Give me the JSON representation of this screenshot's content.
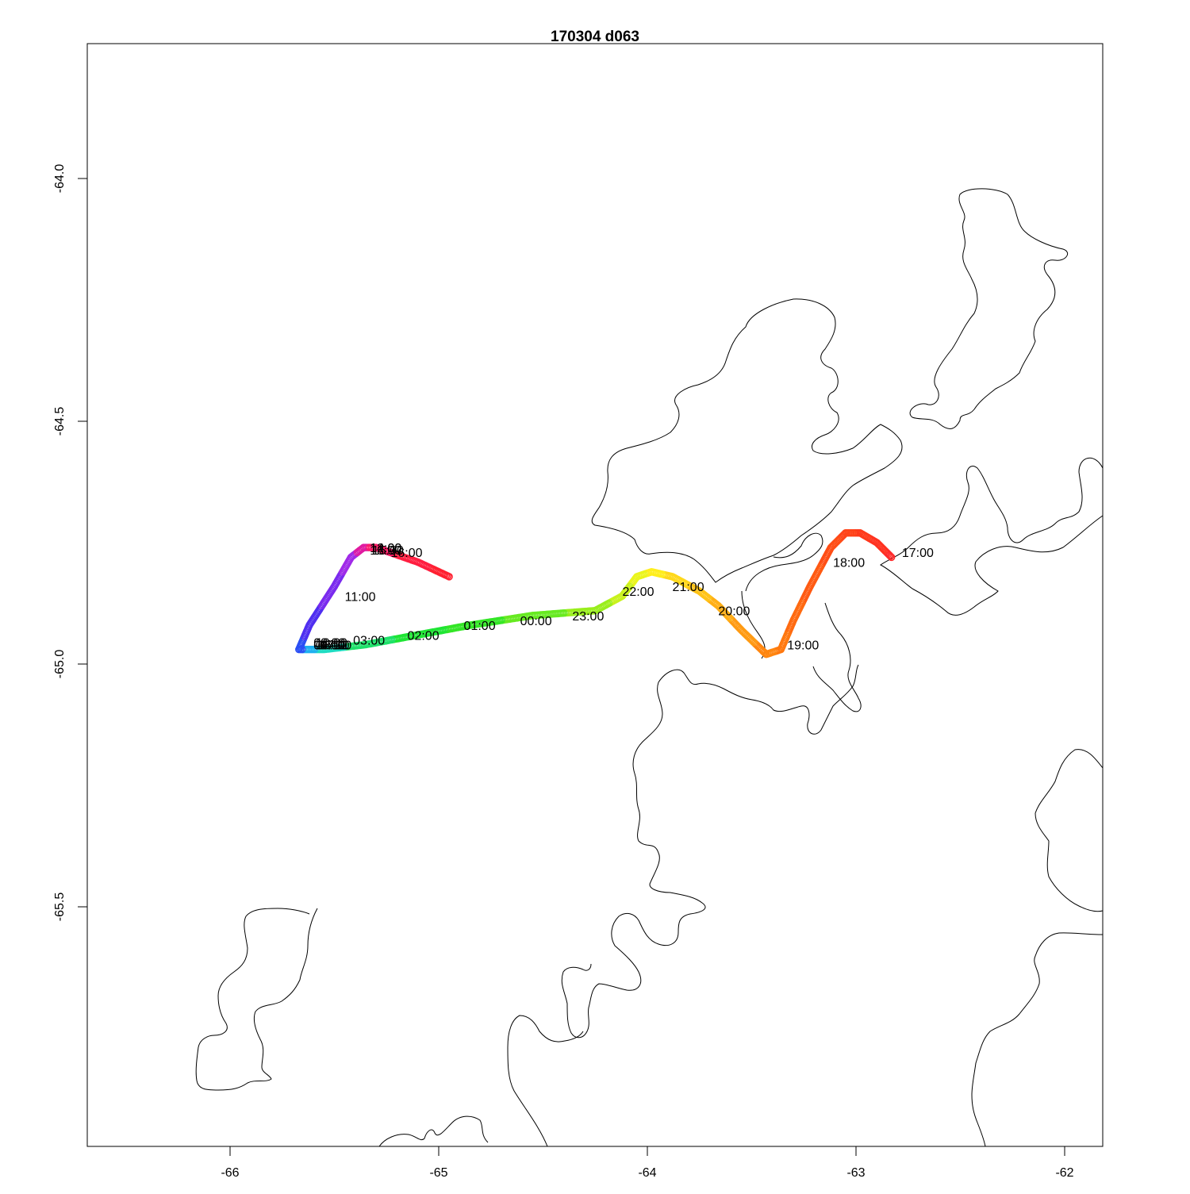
{
  "title": "170304   d063",
  "axes": {
    "x_ticks": [
      -66,
      -65,
      -64,
      -63,
      -62
    ],
    "x_tick_labels": [
      "-66",
      "-65",
      "-64",
      "-63",
      "-62"
    ],
    "y_ticks": [
      -64.0,
      -64.5,
      -65.0,
      -65.5
    ],
    "y_tick_labels": [
      "-64.0",
      "-64.5",
      "-65.0",
      "-65.5"
    ],
    "xlim": [
      -66.68,
      -61.82
    ],
    "ylim": [
      -66.0,
      -63.72
    ]
  },
  "colors": {
    "coastline": "#000000",
    "frame": "#000000",
    "label": "#000000"
  },
  "chart_data": {
    "type": "line",
    "description_of_encoding": "track colored by time",
    "track": [
      {
        "lon": -62.83,
        "lat": -64.78,
        "color": "#ff2a2a"
      },
      {
        "lon": -62.9,
        "lat": -64.75,
        "color": "#ff3220"
      },
      {
        "lon": -62.98,
        "lat": -64.73,
        "color": "#ff3a1a"
      },
      {
        "lon": -63.05,
        "lat": -64.73,
        "color": "#ff4318"
      },
      {
        "lon": -63.12,
        "lat": -64.76,
        "color": "#ff4d15"
      },
      {
        "lon": -63.22,
        "lat": -64.84,
        "color": "#ff5a12"
      },
      {
        "lon": -63.3,
        "lat": -64.91,
        "color": "#ff6a10"
      },
      {
        "lon": -63.36,
        "lat": -64.97,
        "color": "#ff780e"
      },
      {
        "lon": -63.43,
        "lat": -64.98,
        "color": "#ff860f"
      },
      {
        "lon": -63.55,
        "lat": -64.93,
        "color": "#ff9a12"
      },
      {
        "lon": -63.66,
        "lat": -64.88,
        "color": "#ffae14"
      },
      {
        "lon": -63.75,
        "lat": -64.85,
        "color": "#ffc317"
      },
      {
        "lon": -63.88,
        "lat": -64.82,
        "color": "#ffd81a"
      },
      {
        "lon": -63.98,
        "lat": -64.81,
        "color": "#ffee1c"
      },
      {
        "lon": -64.05,
        "lat": -64.82,
        "color": "#eaf51c"
      },
      {
        "lon": -64.12,
        "lat": -64.86,
        "color": "#c8f21c"
      },
      {
        "lon": -64.25,
        "lat": -64.89,
        "color": "#99ee1c"
      },
      {
        "lon": -64.55,
        "lat": -64.9,
        "color": "#66ea20"
      },
      {
        "lon": -64.85,
        "lat": -64.92,
        "color": "#33e626"
      },
      {
        "lon": -65.1,
        "lat": -64.94,
        "color": "#1ee534"
      },
      {
        "lon": -65.35,
        "lat": -64.96,
        "color": "#1ee16a"
      },
      {
        "lon": -65.55,
        "lat": -64.97,
        "color": "#1edcc2"
      },
      {
        "lon": -65.64,
        "lat": -64.97,
        "color": "#1eb0f0"
      },
      {
        "lon": -65.67,
        "lat": -64.97,
        "color": "#2a4ef4"
      },
      {
        "lon": -65.62,
        "lat": -64.92,
        "color": "#4f2ef0"
      },
      {
        "lon": -65.5,
        "lat": -64.84,
        "color": "#7a2aee"
      },
      {
        "lon": -65.42,
        "lat": -64.78,
        "color": "#a02ae8"
      },
      {
        "lon": -65.36,
        "lat": -64.76,
        "color": "#e01aa0"
      },
      {
        "lon": -65.3,
        "lat": -64.76,
        "color": "#ff1a66"
      },
      {
        "lon": -65.1,
        "lat": -64.79,
        "color": "#ff1e40"
      },
      {
        "lon": -64.95,
        "lat": -64.82,
        "color": "#ff2030"
      }
    ],
    "time_labels": [
      {
        "text": "17:00",
        "lon": -62.78,
        "lat": -64.77
      },
      {
        "text": "18:00",
        "lon": -63.11,
        "lat": -64.79
      },
      {
        "text": "19:00",
        "lon": -63.33,
        "lat": -64.96
      },
      {
        "text": "20:00",
        "lon": -63.66,
        "lat": -64.89
      },
      {
        "text": "21:00",
        "lon": -63.88,
        "lat": -64.84
      },
      {
        "text": "22:00",
        "lon": -64.12,
        "lat": -64.85
      },
      {
        "text": "23:00",
        "lon": -64.36,
        "lat": -64.9
      },
      {
        "text": "00:00",
        "lon": -64.61,
        "lat": -64.91
      },
      {
        "text": "01:00",
        "lon": -64.88,
        "lat": -64.92
      },
      {
        "text": "02:00",
        "lon": -65.15,
        "lat": -64.94
      },
      {
        "text": "03:00",
        "lon": -65.41,
        "lat": -64.95
      },
      {
        "text": "04:00",
        "lon": -65.6,
        "lat": -64.96
      },
      {
        "text": "05:00",
        "lon": -65.59,
        "lat": -64.96
      },
      {
        "text": "06:00",
        "lon": -65.58,
        "lat": -64.96
      },
      {
        "text": "07:00",
        "lon": -65.57,
        "lat": -64.96
      },
      {
        "text": "08:00",
        "lon": -65.6,
        "lat": -64.955
      },
      {
        "text": "09:00",
        "lon": -65.6,
        "lat": -64.96
      },
      {
        "text": "10:00",
        "lon": -65.59,
        "lat": -64.955
      },
      {
        "text": "11:00",
        "lon": -65.45,
        "lat": -64.86
      },
      {
        "text": "12:00",
        "lon": -65.33,
        "lat": -64.76
      },
      {
        "text": "13:00",
        "lon": -65.33,
        "lat": -64.765
      },
      {
        "text": "14:00",
        "lon": -65.33,
        "lat": -64.76
      },
      {
        "text": "15:00",
        "lon": -65.32,
        "lat": -64.765
      },
      {
        "text": "16:00",
        "lon": -65.23,
        "lat": -64.77
      }
    ]
  }
}
